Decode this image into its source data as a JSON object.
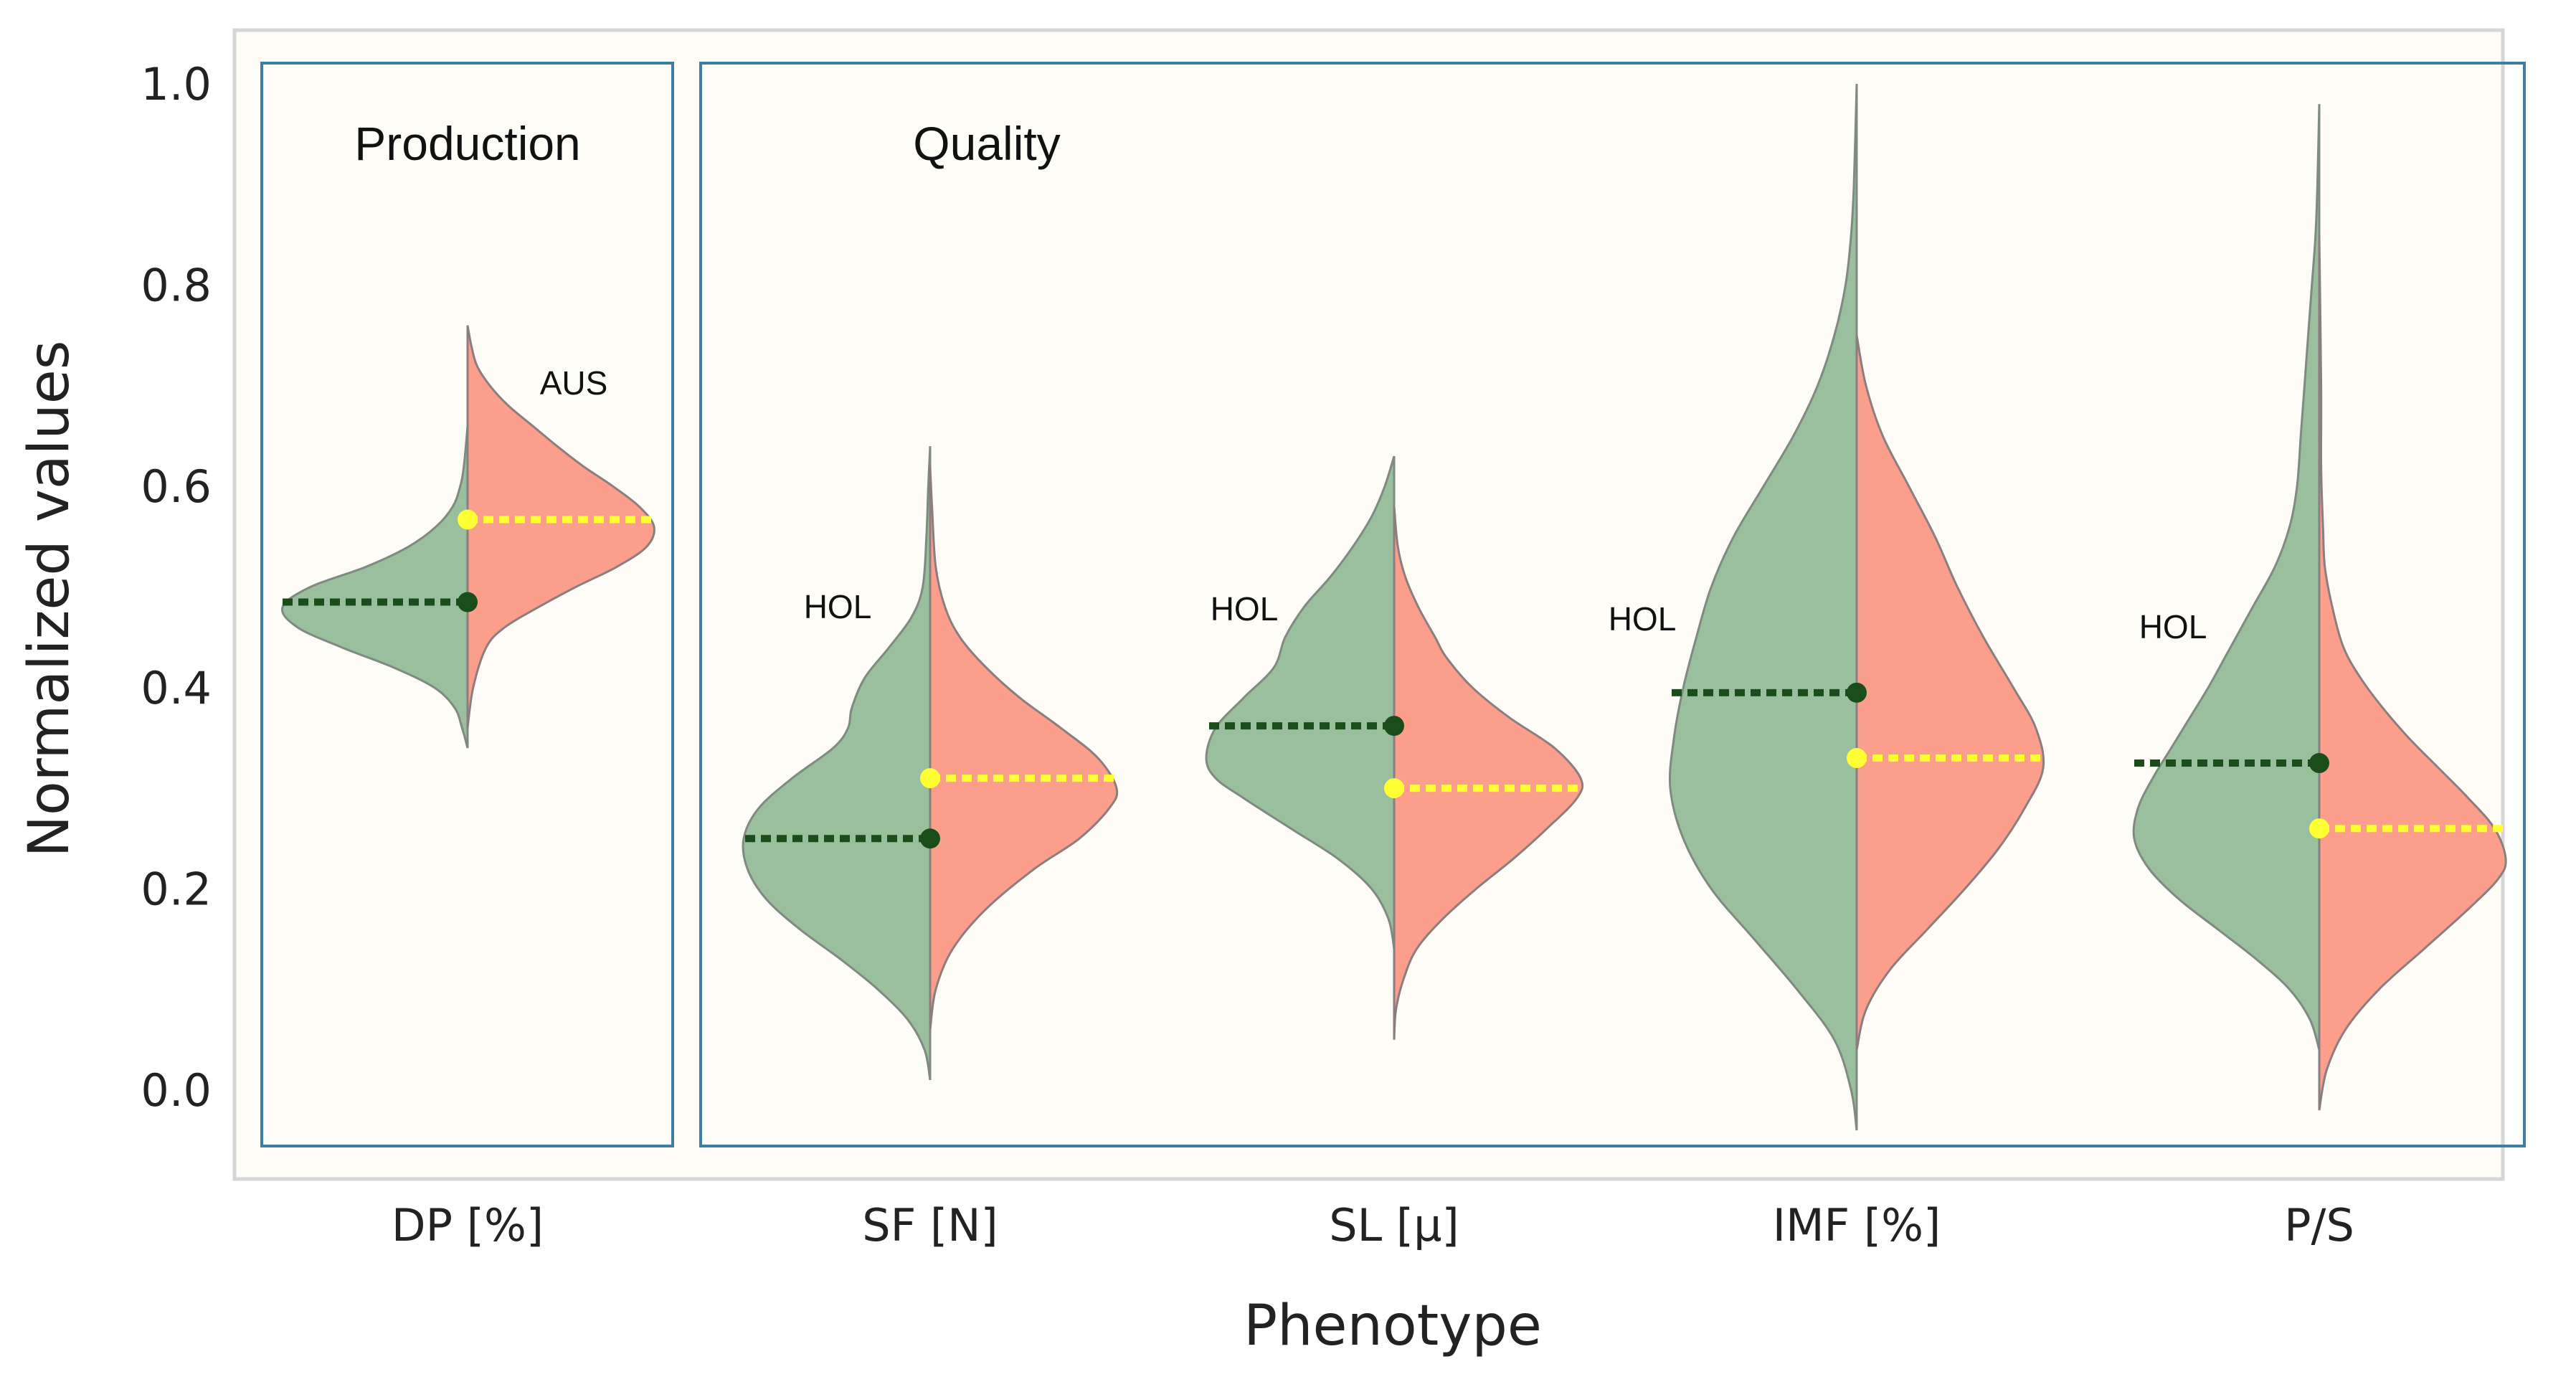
{
  "chart_data": {
    "type": "violin",
    "split": true,
    "xlabel": "Phenotype",
    "ylabel": "Normalized values",
    "ylim": [
      -0.09,
      1.03
    ],
    "yticks": [
      0.0,
      0.2,
      0.4,
      0.6,
      0.8,
      1.0
    ],
    "ytick_labels": [
      "0.0",
      "0.2",
      "0.4",
      "0.6",
      "0.8",
      "1.0"
    ],
    "groups": [
      {
        "title": "Production",
        "categories": [
          "DP [%]"
        ]
      },
      {
        "title": "Quality",
        "categories": [
          "SF [N]",
          "SL [μ]",
          "IMF [%]",
          "P/S"
        ]
      }
    ],
    "series": [
      {
        "name": "HOL",
        "side": "left",
        "color": "#9abf9c",
        "mean_color": "#1b4d1b"
      },
      {
        "name": "AUS",
        "side": "right",
        "color": "#fc9e8c",
        "mean_color": "#ffff33"
      }
    ],
    "annotations": [
      {
        "category": "DP [%]",
        "series": "AUS",
        "text": "AUS"
      },
      {
        "category": "SF [N]",
        "series": "HOL",
        "text": "HOL"
      },
      {
        "category": "SL [μ]",
        "series": "HOL",
        "text": "HOL"
      },
      {
        "category": "IMF [%]",
        "series": "HOL",
        "text": "HOL"
      },
      {
        "category": "P/S",
        "series": "HOL",
        "text": "HOL"
      }
    ],
    "violins": [
      {
        "category": "DP [%]",
        "HOL": {
          "mean": 0.485,
          "profile": [
            [
              0.34,
              0.0
            ],
            [
              0.36,
              0.03
            ],
            [
              0.38,
              0.07
            ],
            [
              0.4,
              0.18
            ],
            [
              0.42,
              0.4
            ],
            [
              0.44,
              0.68
            ],
            [
              0.46,
              0.92
            ],
            [
              0.48,
              1.0
            ],
            [
              0.5,
              0.85
            ],
            [
              0.52,
              0.55
            ],
            [
              0.54,
              0.32
            ],
            [
              0.56,
              0.17
            ],
            [
              0.58,
              0.08
            ],
            [
              0.6,
              0.04
            ],
            [
              0.62,
              0.02
            ],
            [
              0.66,
              0.0
            ]
          ]
        },
        "AUS": {
          "mean": 0.567,
          "profile": [
            [
              0.36,
              0.0
            ],
            [
              0.4,
              0.03
            ],
            [
              0.44,
              0.1
            ],
            [
              0.46,
              0.2
            ],
            [
              0.48,
              0.38
            ],
            [
              0.5,
              0.58
            ],
            [
              0.52,
              0.8
            ],
            [
              0.54,
              0.96
            ],
            [
              0.56,
              1.0
            ],
            [
              0.58,
              0.92
            ],
            [
              0.6,
              0.78
            ],
            [
              0.62,
              0.62
            ],
            [
              0.64,
              0.48
            ],
            [
              0.66,
              0.35
            ],
            [
              0.68,
              0.22
            ],
            [
              0.7,
              0.12
            ],
            [
              0.72,
              0.05
            ],
            [
              0.74,
              0.02
            ],
            [
              0.76,
              0.0
            ]
          ]
        }
      },
      {
        "category": "SF [N]",
        "HOL": {
          "mean": 0.25,
          "profile": [
            [
              0.01,
              0.0
            ],
            [
              0.04,
              0.03
            ],
            [
              0.07,
              0.12
            ],
            [
              0.1,
              0.28
            ],
            [
              0.13,
              0.48
            ],
            [
              0.16,
              0.7
            ],
            [
              0.19,
              0.88
            ],
            [
              0.22,
              0.98
            ],
            [
              0.25,
              1.0
            ],
            [
              0.28,
              0.92
            ],
            [
              0.31,
              0.74
            ],
            [
              0.34,
              0.52
            ],
            [
              0.36,
              0.44
            ],
            [
              0.38,
              0.42
            ],
            [
              0.41,
              0.35
            ],
            [
              0.44,
              0.22
            ],
            [
              0.47,
              0.1
            ],
            [
              0.5,
              0.04
            ],
            [
              0.55,
              0.02
            ],
            [
              0.6,
              0.01
            ],
            [
              0.64,
              0.0
            ]
          ]
        },
        "AUS": {
          "mean": 0.31,
          "profile": [
            [
              0.06,
              0.0
            ],
            [
              0.1,
              0.03
            ],
            [
              0.14,
              0.12
            ],
            [
              0.18,
              0.3
            ],
            [
              0.22,
              0.56
            ],
            [
              0.25,
              0.8
            ],
            [
              0.28,
              0.96
            ],
            [
              0.3,
              1.0
            ],
            [
              0.33,
              0.9
            ],
            [
              0.36,
              0.7
            ],
            [
              0.39,
              0.48
            ],
            [
              0.42,
              0.3
            ],
            [
              0.45,
              0.16
            ],
            [
              0.48,
              0.08
            ],
            [
              0.52,
              0.03
            ],
            [
              0.58,
              0.01
            ],
            [
              0.62,
              0.0
            ]
          ]
        }
      },
      {
        "category": "SL [μ]",
        "HOL": {
          "mean": 0.362,
          "profile": [
            [
              0.14,
              0.0
            ],
            [
              0.17,
              0.03
            ],
            [
              0.2,
              0.12
            ],
            [
              0.23,
              0.3
            ],
            [
              0.26,
              0.55
            ],
            [
              0.29,
              0.8
            ],
            [
              0.31,
              0.95
            ],
            [
              0.33,
              1.0
            ],
            [
              0.36,
              0.95
            ],
            [
              0.39,
              0.8
            ],
            [
              0.42,
              0.64
            ],
            [
              0.45,
              0.58
            ],
            [
              0.48,
              0.48
            ],
            [
              0.51,
              0.34
            ],
            [
              0.54,
              0.22
            ],
            [
              0.57,
              0.12
            ],
            [
              0.6,
              0.05
            ],
            [
              0.63,
              0.0
            ]
          ]
        },
        "AUS": {
          "mean": 0.3,
          "profile": [
            [
              0.05,
              0.0
            ],
            [
              0.08,
              0.01
            ],
            [
              0.11,
              0.05
            ],
            [
              0.14,
              0.12
            ],
            [
              0.17,
              0.26
            ],
            [
              0.2,
              0.44
            ],
            [
              0.23,
              0.64
            ],
            [
              0.26,
              0.82
            ],
            [
              0.29,
              0.98
            ],
            [
              0.31,
              1.0
            ],
            [
              0.34,
              0.86
            ],
            [
              0.37,
              0.62
            ],
            [
              0.4,
              0.42
            ],
            [
              0.43,
              0.28
            ],
            [
              0.45,
              0.22
            ],
            [
              0.48,
              0.13
            ],
            [
              0.51,
              0.06
            ],
            [
              0.54,
              0.02
            ],
            [
              0.58,
              0.0
            ]
          ]
        }
      },
      {
        "category": "IMF [%]",
        "HOL": {
          "mean": 0.395,
          "profile": [
            [
              -0.04,
              0.0
            ],
            [
              0.0,
              0.03
            ],
            [
              0.05,
              0.12
            ],
            [
              0.1,
              0.32
            ],
            [
              0.15,
              0.55
            ],
            [
              0.2,
              0.78
            ],
            [
              0.25,
              0.93
            ],
            [
              0.3,
              1.0
            ],
            [
              0.35,
              0.98
            ],
            [
              0.4,
              0.93
            ],
            [
              0.45,
              0.86
            ],
            [
              0.5,
              0.78
            ],
            [
              0.55,
              0.66
            ],
            [
              0.6,
              0.5
            ],
            [
              0.65,
              0.34
            ],
            [
              0.7,
              0.21
            ],
            [
              0.75,
              0.12
            ],
            [
              0.8,
              0.06
            ],
            [
              0.85,
              0.03
            ],
            [
              0.9,
              0.015
            ],
            [
              1.0,
              0.0
            ]
          ]
        },
        "AUS": {
          "mean": 0.33,
          "profile": [
            [
              0.04,
              0.0
            ],
            [
              0.08,
              0.05
            ],
            [
              0.12,
              0.18
            ],
            [
              0.16,
              0.38
            ],
            [
              0.2,
              0.58
            ],
            [
              0.24,
              0.76
            ],
            [
              0.28,
              0.9
            ],
            [
              0.32,
              1.0
            ],
            [
              0.36,
              0.96
            ],
            [
              0.4,
              0.84
            ],
            [
              0.45,
              0.68
            ],
            [
              0.5,
              0.54
            ],
            [
              0.55,
              0.42
            ],
            [
              0.6,
              0.28
            ],
            [
              0.65,
              0.14
            ],
            [
              0.7,
              0.05
            ],
            [
              0.75,
              0.0
            ]
          ]
        }
      },
      {
        "category": "P/S",
        "HOL": {
          "mean": 0.325,
          "profile": [
            [
              0.04,
              0.0
            ],
            [
              0.07,
              0.05
            ],
            [
              0.1,
              0.16
            ],
            [
              0.13,
              0.34
            ],
            [
              0.16,
              0.55
            ],
            [
              0.19,
              0.76
            ],
            [
              0.22,
              0.92
            ],
            [
              0.25,
              1.0
            ],
            [
              0.28,
              0.98
            ],
            [
              0.31,
              0.9
            ],
            [
              0.34,
              0.8
            ],
            [
              0.37,
              0.7
            ],
            [
              0.4,
              0.6
            ],
            [
              0.44,
              0.48
            ],
            [
              0.48,
              0.36
            ],
            [
              0.52,
              0.24
            ],
            [
              0.56,
              0.16
            ],
            [
              0.6,
              0.12
            ],
            [
              0.65,
              0.1
            ],
            [
              0.7,
              0.08
            ],
            [
              0.75,
              0.06
            ],
            [
              0.8,
              0.04
            ],
            [
              0.85,
              0.02
            ],
            [
              0.9,
              0.01
            ],
            [
              0.98,
              0.0
            ]
          ]
        },
        "AUS": {
          "mean": 0.26,
          "profile": [
            [
              -0.02,
              0.0
            ],
            [
              0.02,
              0.04
            ],
            [
              0.06,
              0.14
            ],
            [
              0.1,
              0.32
            ],
            [
              0.14,
              0.56
            ],
            [
              0.18,
              0.8
            ],
            [
              0.21,
              0.96
            ],
            [
              0.23,
              1.0
            ],
            [
              0.26,
              0.94
            ],
            [
              0.29,
              0.8
            ],
            [
              0.32,
              0.64
            ],
            [
              0.35,
              0.48
            ],
            [
              0.38,
              0.34
            ],
            [
              0.41,
              0.22
            ],
            [
              0.44,
              0.13
            ],
            [
              0.48,
              0.07
            ],
            [
              0.52,
              0.03
            ],
            [
              0.56,
              0.02
            ],
            [
              0.62,
              0.01
            ],
            [
              0.7,
              0.01
            ],
            [
              0.85,
              0.0
            ]
          ]
        }
      }
    ]
  }
}
